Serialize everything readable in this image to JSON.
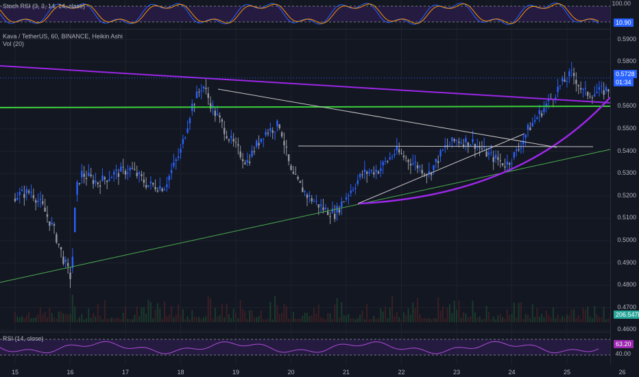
{
  "indicators": {
    "stoch_label": "Stoch RSI (3, 3, 14, 14, close)",
    "stoch_top": "100.00",
    "stoch_value": "10.90",
    "rsi_label": "RSI (14, close)",
    "rsi_value": "63.20",
    "rsi_level": "40.00",
    "vol_label": "Vol (20)",
    "vol_value": "206.547K"
  },
  "header": {
    "symbol": "Kava / TetherUS, 60, BINANCE, Heikin Ashi"
  },
  "price_axis": {
    "ticks": [
      "0.5900",
      "0.5800",
      "0.5600",
      "0.5500",
      "0.5400",
      "0.5300",
      "0.5200",
      "0.5100",
      "0.5000",
      "0.4900",
      "0.4800",
      "0.4700",
      "0.4600"
    ],
    "last_price": "0.5728",
    "countdown": "01:34"
  },
  "colors": {
    "bg": "#131722",
    "bull": "#2962ff",
    "bear": "#9598a1",
    "purple": "#9c27e8",
    "green": "#4caf50",
    "bright_green": "#3bd13b",
    "white_line": "#c8c8c8"
  },
  "chart_data": {
    "type": "candlestick",
    "x_ticks": [
      "15",
      "16",
      "17",
      "18",
      "19",
      "20",
      "21",
      "22",
      "23",
      "24",
      "25",
      "26"
    ],
    "y_range": [
      0.465,
      0.595
    ],
    "path_x": [
      0,
      0.3,
      0.5,
      0.7,
      0.9,
      1.0,
      1.05,
      1.1,
      1.2,
      1.5,
      1.8,
      2.1,
      2.4,
      2.7,
      3.0,
      3.2,
      3.4,
      3.6,
      3.75,
      3.9,
      4.2,
      4.5,
      4.8,
      5.0,
      5.3,
      5.6,
      5.8,
      6.0,
      6.3,
      6.6,
      6.9,
      7.2,
      7.5,
      7.8,
      8.0,
      8.3,
      8.6,
      8.9,
      9.1,
      9.3,
      9.6,
      9.9,
      10.1,
      10.3,
      10.5,
      10.8,
      10.9
    ],
    "path_y": [
      0.52,
      0.522,
      0.515,
      0.505,
      0.49,
      0.484,
      0.495,
      0.522,
      0.53,
      0.526,
      0.53,
      0.532,
      0.525,
      0.524,
      0.54,
      0.56,
      0.57,
      0.558,
      0.552,
      0.545,
      0.535,
      0.548,
      0.552,
      0.53,
      0.52,
      0.514,
      0.512,
      0.52,
      0.53,
      0.532,
      0.54,
      0.535,
      0.53,
      0.542,
      0.545,
      0.544,
      0.538,
      0.534,
      0.54,
      0.55,
      0.56,
      0.57,
      0.575,
      0.566,
      0.566,
      0.568,
      0.569
    ]
  }
}
